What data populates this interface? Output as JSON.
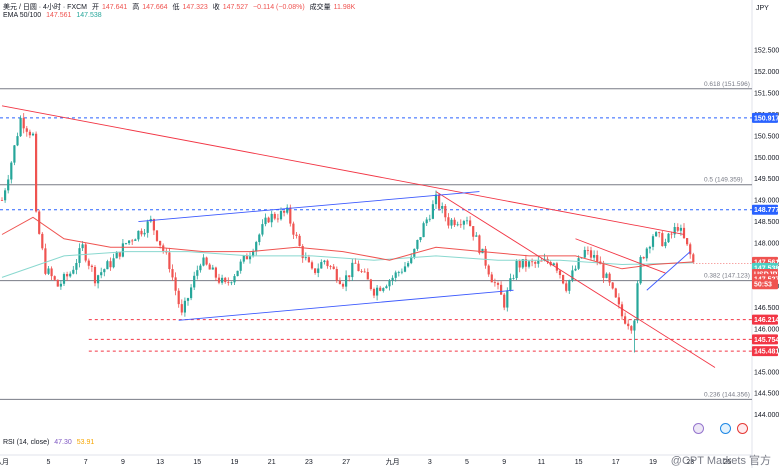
{
  "header": {
    "symbol_line": "美元 / 日圆 · 4小时 · FXCM",
    "open_label": "开",
    "open": "147.641",
    "high_label": "高",
    "high": "147.664",
    "low_label": "低",
    "low": "147.323",
    "close_label": "收",
    "close": "147.527",
    "change": "−0.114 (−0.08%)",
    "volume_label": "成交量",
    "volume": "11.98K"
  },
  "ema_legend": {
    "label": "EMA 50/100",
    "ema50": "147.561",
    "ema100": "147.538"
  },
  "rsi_legend": {
    "label": "RSI (14, close)",
    "value1": "47.30",
    "value2": "53.91"
  },
  "currency": "JPY",
  "watermark": "@CPT Markets 官方",
  "colors": {
    "up": "#26a69a",
    "down": "#ef5350",
    "ema50": "#ef5350",
    "ema100": "#89d8cf",
    "trend_blue": "#3d5afe",
    "trend_red": "#f23645",
    "dashed_blue": "#2962ff",
    "dashed_red": "#f23645"
  },
  "chart_data": {
    "type": "candlestick",
    "timeframe": "4h",
    "y_ticks": [
      "152.500",
      "152.000",
      "151.500",
      "151.000",
      "150.500",
      "150.000",
      "149.500",
      "149.000",
      "148.500",
      "148.000",
      "147.500",
      "147.000",
      "146.500",
      "146.000",
      "145.500",
      "145.000",
      "144.500",
      "144.000"
    ],
    "ylim": [
      143.9,
      152.9
    ],
    "x_ticks": [
      {
        "i": 0,
        "label": "八月"
      },
      {
        "i": 15,
        "label": "5"
      },
      {
        "i": 27,
        "label": "7"
      },
      {
        "i": 39,
        "label": "9"
      },
      {
        "i": 51,
        "label": "13"
      },
      {
        "i": 63,
        "label": "15"
      },
      {
        "i": 75,
        "label": "19"
      },
      {
        "i": 87,
        "label": "21"
      },
      {
        "i": 99,
        "label": "23"
      },
      {
        "i": 111,
        "label": "27"
      },
      {
        "i": 126,
        "label": "九月"
      },
      {
        "i": 138,
        "label": "3"
      },
      {
        "i": 150,
        "label": "5"
      },
      {
        "i": 162,
        "label": "9"
      },
      {
        "i": 174,
        "label": "11"
      },
      {
        "i": 186,
        "label": "15"
      },
      {
        "i": 198,
        "label": "17"
      },
      {
        "i": 210,
        "label": "19"
      },
      {
        "i": 222,
        "label": "23"
      },
      {
        "i": 234,
        "label": "25"
      }
    ],
    "candle_count": 224,
    "pivots": [
      [
        0,
        149.0
      ],
      [
        3,
        149.9
      ],
      [
        6,
        150.9
      ],
      [
        10,
        150.5
      ],
      [
        11,
        148.6
      ],
      [
        14,
        147.4
      ],
      [
        18,
        147.0
      ],
      [
        22,
        147.3
      ],
      [
        26,
        147.9
      ],
      [
        30,
        147.2
      ],
      [
        36,
        147.6
      ],
      [
        40,
        148.0
      ],
      [
        48,
        148.5
      ],
      [
        54,
        147.5
      ],
      [
        58,
        146.3
      ],
      [
        64,
        147.6
      ],
      [
        72,
        147.0
      ],
      [
        80,
        147.8
      ],
      [
        86,
        148.6
      ],
      [
        92,
        148.7
      ],
      [
        96,
        147.9
      ],
      [
        100,
        147.3
      ],
      [
        104,
        147.6
      ],
      [
        110,
        147.1
      ],
      [
        114,
        147.5
      ],
      [
        120,
        146.9
      ],
      [
        126,
        147.2
      ],
      [
        132,
        147.6
      ],
      [
        136,
        148.4
      ],
      [
        140,
        149.0
      ],
      [
        144,
        148.5
      ],
      [
        150,
        148.6
      ],
      [
        154,
        147.9
      ],
      [
        158,
        147.2
      ],
      [
        162,
        146.6
      ],
      [
        166,
        147.5
      ],
      [
        172,
        147.5
      ],
      [
        178,
        147.6
      ],
      [
        182,
        147.0
      ],
      [
        188,
        147.8
      ],
      [
        192,
        147.6
      ],
      [
        196,
        147.0
      ],
      [
        200,
        146.3
      ],
      [
        203,
        146.1
      ],
      [
        204,
        146.3
      ],
      [
        206,
        147.6
      ],
      [
        210,
        148.2
      ],
      [
        214,
        148.0
      ],
      [
        218,
        148.4
      ],
      [
        221,
        147.9
      ],
      [
        223,
        147.53
      ]
    ],
    "ema50": [
      [
        0,
        148.2
      ],
      [
        10,
        148.6
      ],
      [
        20,
        148.1
      ],
      [
        35,
        147.9
      ],
      [
        50,
        147.9
      ],
      [
        65,
        147.8
      ],
      [
        80,
        147.8
      ],
      [
        95,
        147.9
      ],
      [
        110,
        147.8
      ],
      [
        125,
        147.6
      ],
      [
        140,
        147.9
      ],
      [
        155,
        147.8
      ],
      [
        170,
        147.7
      ],
      [
        185,
        147.7
      ],
      [
        200,
        147.4
      ],
      [
        210,
        147.5
      ],
      [
        223,
        147.56
      ]
    ],
    "ema100": [
      [
        0,
        147.2
      ],
      [
        20,
        147.7
      ],
      [
        40,
        147.8
      ],
      [
        60,
        147.8
      ],
      [
        80,
        147.7
      ],
      [
        100,
        147.7
      ],
      [
        120,
        147.6
      ],
      [
        140,
        147.7
      ],
      [
        160,
        147.6
      ],
      [
        180,
        147.6
      ],
      [
        200,
        147.5
      ],
      [
        223,
        147.54
      ]
    ],
    "trendlines": [
      {
        "color": "red",
        "points": [
          [
            0,
            151.2
          ],
          [
            220,
            148.2
          ]
        ]
      },
      {
        "color": "red",
        "points": [
          [
            140,
            149.2
          ],
          [
            230,
            145.1
          ]
        ]
      },
      {
        "color": "red",
        "points": [
          [
            185,
            148.1
          ],
          [
            214,
            147.3
          ]
        ]
      },
      {
        "color": "blue",
        "points": [
          [
            44,
            148.5
          ],
          [
            154,
            149.2
          ]
        ]
      },
      {
        "color": "blue",
        "points": [
          [
            57,
            146.2
          ],
          [
            165,
            146.9
          ]
        ]
      },
      {
        "color": "blue",
        "points": [
          [
            208,
            146.9
          ],
          [
            222,
            147.8
          ]
        ]
      }
    ],
    "horizontal_levels": [
      {
        "price": 151.596,
        "style": "solid",
        "color": "gray",
        "fib": "0.618 (151.596)"
      },
      {
        "price": 150.917,
        "style": "dashed",
        "color": "blue",
        "tag": "150.917"
      },
      {
        "price": 149.359,
        "style": "solid",
        "color": "gray",
        "fib": "0.5 (149.359)"
      },
      {
        "price": 148.777,
        "style": "dashed",
        "color": "blue",
        "tag": "148.777"
      },
      {
        "price": 147.123,
        "style": "solid",
        "color": "gray",
        "fib": "0.382 (147.123)"
      },
      {
        "price": 146.214,
        "style": "dashed",
        "color": "red",
        "tag": "146.214"
      },
      {
        "price": 145.754,
        "style": "dashed",
        "color": "red",
        "tag": "145.754"
      },
      {
        "price": 145.481,
        "style": "dashed",
        "color": "red",
        "tag": "145.481"
      },
      {
        "price": 144.356,
        "style": "solid",
        "color": "gray",
        "fib": "0.236 (144.356)"
      }
    ],
    "price_tags": [
      {
        "label": "147.561",
        "price": 147.561,
        "color": "#ef5350"
      },
      {
        "label": "147.538",
        "price": 147.42,
        "color": "#4dd0c4"
      },
      {
        "label": "USDJPY",
        "price": 147.28,
        "color": "#ef5350"
      },
      {
        "label": "147.527",
        "price": 147.16,
        "color": "#ef5350"
      },
      {
        "label": "50:53",
        "price": 147.04,
        "color": "#ef5350"
      }
    ]
  }
}
